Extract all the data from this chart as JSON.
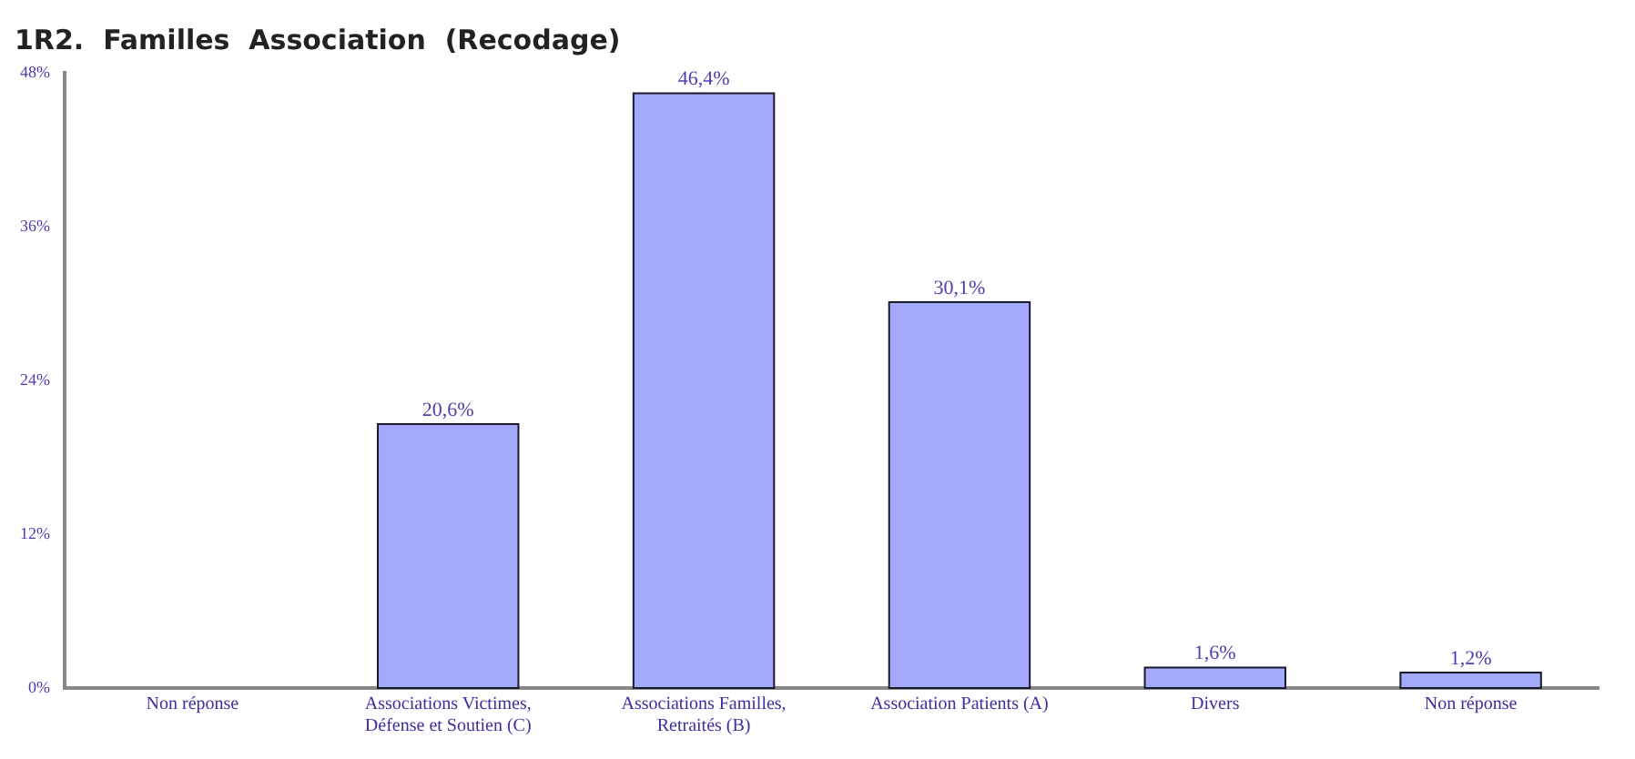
{
  "chart_data": {
    "type": "bar",
    "title": "1R2.  Familles  Association  (Recodage)",
    "categories": [
      "Non réponse",
      "Associations Victimes, Défense et Soutien (C)",
      "Associations Familles, Retraités (B)",
      "Association Patients (A)",
      "Divers",
      "Non réponse"
    ],
    "values": [
      0,
      20.6,
      46.4,
      30.1,
      1.6,
      1.2
    ],
    "value_labels": [
      null,
      "20,6%",
      "46,4%",
      "30,1%",
      "1,6%",
      "1,2%"
    ],
    "color": "#a3a9fb",
    "ylim": [
      0,
      48
    ],
    "yticks": [
      {
        "value": 0,
        "label": "0%"
      },
      {
        "value": 12,
        "label": "12%"
      },
      {
        "value": 24,
        "label": "24%"
      },
      {
        "value": 36,
        "label": "36%"
      },
      {
        "value": 48,
        "label": "48%"
      }
    ],
    "grid": false
  }
}
